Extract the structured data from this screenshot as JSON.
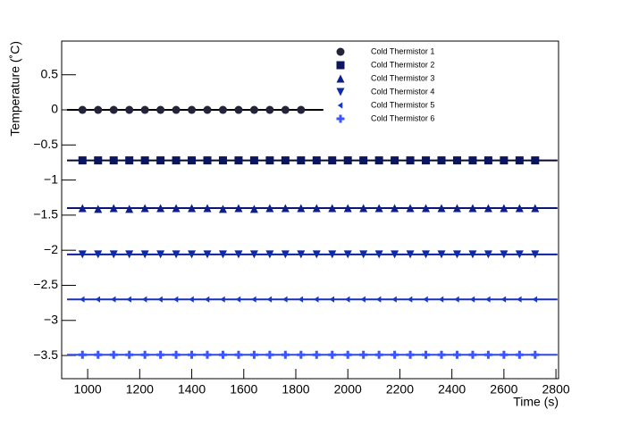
{
  "chart_data": {
    "type": "scatter",
    "xlabel": "Time (s)",
    "ylabel": "Temperature (˚C)",
    "xlim": [
      900,
      2810
    ],
    "ylim": [
      -3.83,
      0.98
    ],
    "xticks": [
      1000,
      1200,
      1400,
      1600,
      1800,
      2000,
      2200,
      2400,
      2600,
      2800
    ],
    "yticks": [
      {
        "value": -3.5,
        "label": "−3.5"
      },
      {
        "value": -3,
        "label": "−3"
      },
      {
        "value": -2.5,
        "label": "−2.5"
      },
      {
        "value": -2,
        "label": "−2"
      },
      {
        "value": -1.5,
        "label": "−1.5"
      },
      {
        "value": -1,
        "label": "−1"
      },
      {
        "value": -0.5,
        "label": "−0.5"
      },
      0,
      0.5
    ],
    "legend": "top-center",
    "series": [
      {
        "name": "Cold Thermistor 1",
        "color": "#23233a",
        "line_color": "#000000",
        "marker": "circle",
        "fit": 0,
        "x": [
          980,
          1040,
          1100,
          1160,
          1220,
          1280,
          1340,
          1400,
          1460,
          1520,
          1580,
          1640,
          1700,
          1760,
          1820
        ],
        "values": [
          0,
          0,
          0,
          0,
          0,
          0,
          0,
          0,
          0,
          0,
          0,
          0,
          0,
          0,
          0
        ]
      },
      {
        "name": "Cold Thermistor 2",
        "color": "#0b1560",
        "line_color": "#050a30",
        "marker": "square",
        "fit": -0.72,
        "x": [
          980,
          1040,
          1100,
          1160,
          1220,
          1280,
          1340,
          1400,
          1460,
          1520,
          1580,
          1640,
          1700,
          1760,
          1820,
          1880,
          1940,
          2000,
          2060,
          2120,
          2180,
          2240,
          2300,
          2360,
          2420,
          2480,
          2540,
          2600,
          2660,
          2720
        ],
        "values": [
          -0.72,
          -0.72,
          -0.72,
          -0.72,
          -0.72,
          -0.72,
          -0.72,
          -0.72,
          -0.72,
          -0.72,
          -0.72,
          -0.72,
          -0.72,
          -0.72,
          -0.72,
          -0.72,
          -0.72,
          -0.72,
          -0.72,
          -0.72,
          -0.72,
          -0.72,
          -0.72,
          -0.72,
          -0.72,
          -0.72,
          -0.72,
          -0.72,
          -0.72,
          -0.72
        ]
      },
      {
        "name": "Cold Thermistor 3",
        "color": "#0d1f8a",
        "line_color": "#0a1670",
        "marker": "triangle-up",
        "fit": -1.4,
        "x": [
          980,
          1040,
          1100,
          1160,
          1220,
          1280,
          1340,
          1400,
          1460,
          1520,
          1580,
          1640,
          1700,
          1760,
          1820,
          1880,
          1940,
          2000,
          2060,
          2120,
          2180,
          2240,
          2300,
          2360,
          2420,
          2480,
          2540,
          2600,
          2660,
          2720
        ],
        "values": [
          -1.4,
          -1.41,
          -1.4,
          -1.41,
          -1.4,
          -1.4,
          -1.4,
          -1.4,
          -1.4,
          -1.41,
          -1.4,
          -1.41,
          -1.4,
          -1.4,
          -1.4,
          -1.4,
          -1.4,
          -1.4,
          -1.4,
          -1.4,
          -1.4,
          -1.4,
          -1.4,
          -1.4,
          -1.4,
          -1.4,
          -1.4,
          -1.4,
          -1.4,
          -1.4
        ]
      },
      {
        "name": "Cold Thermistor 4",
        "color": "#0f2aa8",
        "line_color": "#0c209a",
        "marker": "triangle-down",
        "fit": -2.06,
        "x": [
          980,
          1040,
          1100,
          1160,
          1220,
          1280,
          1340,
          1400,
          1460,
          1520,
          1580,
          1640,
          1700,
          1760,
          1820,
          1880,
          1940,
          2000,
          2060,
          2120,
          2180,
          2240,
          2300,
          2360,
          2420,
          2480,
          2540,
          2600,
          2660,
          2720
        ],
        "values": [
          -2.06,
          -2.06,
          -2.06,
          -2.06,
          -2.06,
          -2.06,
          -2.06,
          -2.06,
          -2.06,
          -2.06,
          -2.06,
          -2.06,
          -2.06,
          -2.06,
          -2.06,
          -2.06,
          -2.06,
          -2.06,
          -2.06,
          -2.06,
          -2.06,
          -2.06,
          -2.06,
          -2.06,
          -2.06,
          -2.06,
          -2.06,
          -2.06,
          -2.06,
          -2.06
        ]
      },
      {
        "name": "Cold Thermistor 5",
        "color": "#1836c4",
        "line_color": "#1530c0",
        "marker": "triangle-left",
        "fit": -2.7,
        "x": [
          980,
          1040,
          1100,
          1160,
          1220,
          1280,
          1340,
          1400,
          1460,
          1520,
          1580,
          1640,
          1700,
          1760,
          1820,
          1880,
          1940,
          2000,
          2060,
          2120,
          2180,
          2240,
          2300,
          2360,
          2420,
          2480,
          2540,
          2600,
          2660,
          2720
        ],
        "values": [
          -2.7,
          -2.7,
          -2.7,
          -2.7,
          -2.7,
          -2.7,
          -2.7,
          -2.7,
          -2.7,
          -2.7,
          -2.7,
          -2.7,
          -2.7,
          -2.7,
          -2.7,
          -2.7,
          -2.7,
          -2.7,
          -2.7,
          -2.7,
          -2.7,
          -2.7,
          -2.7,
          -2.7,
          -2.7,
          -2.7,
          -2.7,
          -2.7,
          -2.7,
          -2.7
        ]
      },
      {
        "name": "Cold Thermistor 6",
        "color": "#3a55ff",
        "line_color": "#2c48f0",
        "marker": "cross",
        "fit": -3.49,
        "x": [
          980,
          1040,
          1100,
          1160,
          1220,
          1280,
          1340,
          1400,
          1460,
          1520,
          1580,
          1640,
          1700,
          1760,
          1820,
          1880,
          1940,
          2000,
          2060,
          2120,
          2180,
          2240,
          2300,
          2360,
          2420,
          2480,
          2540,
          2600,
          2660,
          2720
        ],
        "values": [
          -3.49,
          -3.49,
          -3.49,
          -3.49,
          -3.49,
          -3.49,
          -3.49,
          -3.49,
          -3.49,
          -3.49,
          -3.49,
          -3.49,
          -3.49,
          -3.49,
          -3.49,
          -3.49,
          -3.49,
          -3.49,
          -3.49,
          -3.49,
          -3.49,
          -3.49,
          -3.49,
          -3.49,
          -3.49,
          -3.49,
          -3.49,
          -3.49,
          -3.49,
          -3.49
        ]
      }
    ]
  }
}
